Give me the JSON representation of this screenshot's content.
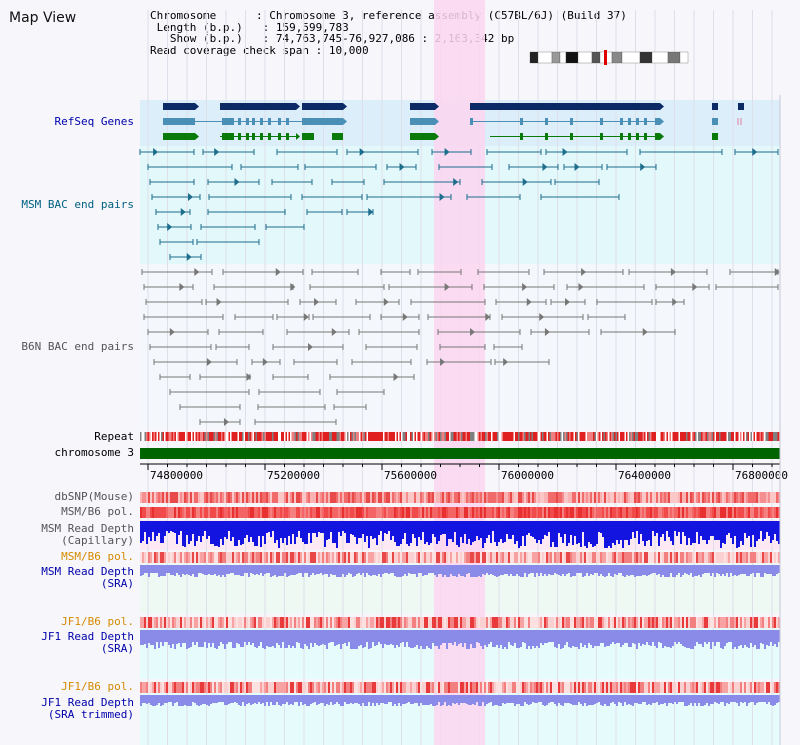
{
  "title": "Map View",
  "info": {
    "chromosome_label": "Chromosome",
    "chromosome_value": "Chromosome 3, reference assembly (C57BL/6J) (Build 37)",
    "length_label": "Length (b.p.)",
    "length_value": "159,599,783",
    "show_label": "Show (b.p.)",
    "show_value": "74,763,745-76,927,086 : 2,163,342 bp",
    "coverage_label": "Read coverage check span",
    "coverage_value": "10,000"
  },
  "tracks": {
    "refseq": "RefSeq Genes",
    "msm_bac": "MSM BAC end pairs",
    "b6n_bac": "B6N BAC end pairs",
    "repeat": "Repeat",
    "chromosome": "chromosome 3",
    "dbsnp": "dbSNP(Mouse)",
    "msm_b6_pol": "MSM/B6 pol.",
    "msm_depth_cap": "MSM Read Depth\n(Capillary)",
    "msm_b6_pol2": "MSM/B6 pol.",
    "msm_depth_sra": "MSM Read Depth\n(SRA)",
    "jf1_b6_pol": "JF1/B6 pol.",
    "jf1_depth_sra": "JF1 Read Depth\n(SRA)",
    "jf1_b6_pol2": "JF1/B6 pol.",
    "jf1_depth_trim": "JF1 Read Depth\n(SRA trimmed)"
  },
  "axis": {
    "ticks": [
      "74800000",
      "75200000",
      "75600000",
      "76000000",
      "76400000",
      "76800000"
    ]
  },
  "colors": {
    "highlight": "#fcd6f0",
    "refseq_bg": "#dceefa",
    "bac_bg": "#e3f8fb",
    "gene_navy": "#0b2a66",
    "gene_steel": "#4a8fb5",
    "gene_green": "#0a7a0a",
    "msm_pair": "#1d6d8c",
    "b6n_pair": "#777777",
    "chrom_bar": "#006400",
    "depth_blue": "#1414e0",
    "depth_light": "#8a8ae8"
  }
}
